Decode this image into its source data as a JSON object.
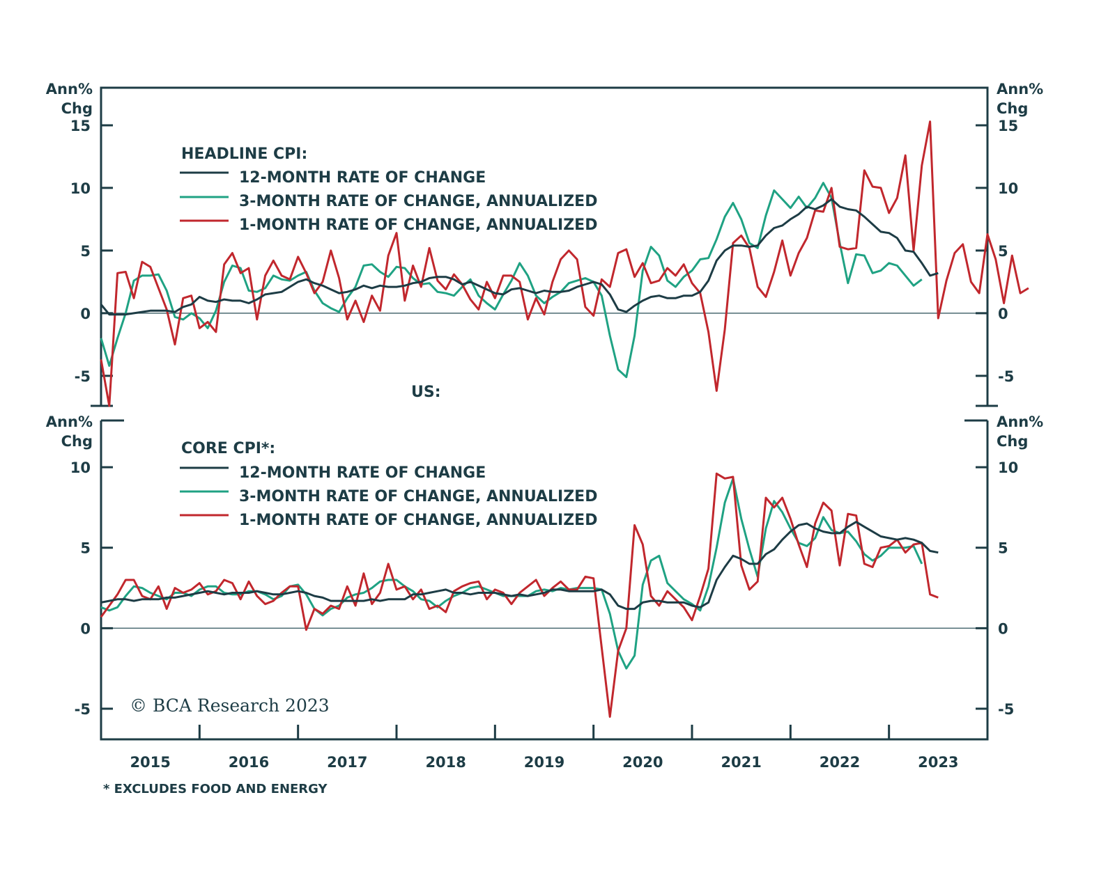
{
  "chart_data": [
    {
      "type": "line",
      "title": "HEADLINE CPI:",
      "ylabel": "Ann% Chg",
      "ylim": [
        -7.4,
        18
      ],
      "yticks": [
        -5,
        0,
        5,
        10,
        15
      ],
      "ytick_labels": [
        "-5",
        "0",
        "5",
        "10",
        "15"
      ],
      "x_start": "2015-01",
      "x_end": "2024-01",
      "legend_placement": "top-left",
      "series": [
        {
          "name": "12-MONTH RATE OF CHANGE",
          "color": "#1d3c45",
          "values": [
            0.7,
            -0.1,
            -0.1,
            -0.1,
            0.0,
            0.1,
            0.2,
            0.2,
            0.2,
            0.1,
            0.5,
            0.7,
            1.3,
            1.0,
            0.9,
            1.1,
            1.0,
            1.0,
            0.8,
            1.1,
            1.5,
            1.6,
            1.7,
            2.1,
            2.5,
            2.7,
            2.4,
            2.2,
            1.9,
            1.6,
            1.7,
            1.9,
            2.2,
            2.0,
            2.2,
            2.1,
            2.1,
            2.2,
            2.4,
            2.5,
            2.8,
            2.9,
            2.9,
            2.7,
            2.3,
            2.5,
            2.2,
            1.9,
            1.6,
            1.5,
            1.9,
            2.0,
            1.8,
            1.6,
            1.8,
            1.7,
            1.7,
            1.8,
            2.1,
            2.3,
            2.5,
            2.3,
            1.5,
            0.3,
            0.1,
            0.6,
            1.0,
            1.3,
            1.4,
            1.2,
            1.2,
            1.4,
            1.4,
            1.7,
            2.6,
            4.2,
            5.0,
            5.4,
            5.4,
            5.3,
            5.4,
            6.2,
            6.8,
            7.0,
            7.5,
            7.9,
            8.5,
            8.3,
            8.6,
            9.1,
            8.5,
            8.3,
            8.2,
            7.7,
            7.1,
            6.5,
            6.4,
            6.0,
            5.0,
            4.9,
            4.0,
            3.0,
            3.2
          ]
        },
        {
          "name": "3-MONTH RATE OF CHANGE, ANNUALIZED",
          "color": "#1fa283",
          "values": [
            -2.0,
            -4.2,
            -2.0,
            0.0,
            2.6,
            3.0,
            3.0,
            3.1,
            1.8,
            -0.3,
            -0.5,
            0.0,
            -0.4,
            -1.2,
            0.2,
            2.5,
            3.8,
            3.6,
            1.8,
            1.7,
            2.0,
            3.0,
            2.7,
            2.6,
            3.0,
            3.3,
            1.8,
            0.8,
            0.4,
            0.1,
            1.2,
            2.1,
            3.8,
            3.9,
            3.3,
            2.9,
            3.7,
            3.6,
            2.8,
            2.3,
            2.4,
            1.7,
            1.6,
            1.4,
            2.1,
            2.7,
            1.4,
            0.8,
            0.3,
            1.5,
            2.6,
            4.0,
            3.0,
            1.4,
            0.8,
            1.3,
            1.7,
            2.4,
            2.6,
            2.8,
            2.5,
            1.4,
            -1.8,
            -4.5,
            -5.1,
            -1.8,
            3.4,
            5.3,
            4.6,
            2.6,
            2.1,
            2.9,
            3.4,
            4.3,
            4.4,
            5.9,
            7.7,
            8.8,
            7.5,
            5.6,
            5.2,
            7.8,
            9.8,
            9.1,
            8.4,
            9.3,
            8.4,
            9.2,
            10.4,
            9.2,
            5.6,
            2.4,
            4.7,
            4.6,
            3.2,
            3.4,
            4.0,
            3.8,
            3.0,
            2.2,
            2.7
          ]
        },
        {
          "name": "1-MONTH RATE OF CHANGE, ANNUALIZED",
          "color": "#c1272d",
          "values": [
            -3.7,
            -7.4,
            3.2,
            3.3,
            1.2,
            4.1,
            3.7,
            2.0,
            0.3,
            -2.5,
            1.2,
            1.4,
            -1.2,
            -0.7,
            -1.5,
            3.9,
            4.8,
            3.2,
            3.6,
            -0.5,
            3.0,
            4.2,
            3.0,
            2.7,
            4.5,
            3.2,
            1.6,
            2.5,
            5.0,
            2.8,
            -0.5,
            1.0,
            -0.7,
            1.4,
            0.2,
            4.6,
            6.4,
            1.0,
            3.8,
            2.1,
            5.2,
            2.6,
            1.9,
            3.1,
            2.3,
            1.1,
            0.3,
            2.5,
            1.2,
            3.0,
            3.0,
            2.5,
            -0.5,
            1.2,
            -0.1,
            2.5,
            4.3,
            5.0,
            4.3,
            0.5,
            -0.2,
            2.7,
            2.1,
            4.8,
            5.1,
            2.9,
            4.0,
            2.4,
            2.6,
            3.6,
            3.0,
            3.9,
            2.4,
            1.6,
            -1.5,
            -6.2,
            -1.3,
            5.6,
            6.2,
            5.2,
            2.1,
            1.3,
            3.3,
            5.8,
            3.0,
            4.8,
            6.0,
            8.2,
            8.1,
            10.0,
            5.3,
            5.1,
            5.2,
            11.4,
            10.1,
            10.0,
            8.0,
            9.2,
            12.6,
            5.0,
            11.8,
            15.3,
            -0.4,
            2.6,
            4.8,
            5.5,
            2.5,
            1.6,
            6.3,
            4.3,
            0.8,
            4.6,
            1.6,
            2.0
          ]
        }
      ]
    },
    {
      "type": "line",
      "title": "CORE CPI*:",
      "ylabel": "Ann% Chg",
      "ylim": [
        -6.9,
        12.9
      ],
      "yticks": [
        -5,
        0,
        5,
        10
      ],
      "ytick_labels": [
        "-5",
        "0",
        "5",
        "10"
      ],
      "x_start": "2015-01",
      "x_end": "2024-01",
      "xticks": [
        "2016",
        "2017",
        "2018",
        "2019",
        "2020",
        "2021",
        "2022",
        "2023"
      ],
      "xtick_labels": [
        "2015",
        "2016",
        "2017",
        "2018",
        "2019",
        "2020",
        "2021",
        "2022",
        "2023"
      ],
      "legend_placement": "top-left",
      "series": [
        {
          "name": "12-MONTH RATE OF CHANGE",
          "color": "#1d3c45",
          "values": [
            1.6,
            1.7,
            1.8,
            1.8,
            1.7,
            1.8,
            1.8,
            1.8,
            1.9,
            1.9,
            2.0,
            2.1,
            2.2,
            2.3,
            2.2,
            2.1,
            2.2,
            2.2,
            2.2,
            2.3,
            2.2,
            2.1,
            2.1,
            2.2,
            2.3,
            2.2,
            2.0,
            1.9,
            1.7,
            1.7,
            1.7,
            1.7,
            1.7,
            1.8,
            1.7,
            1.8,
            1.8,
            1.8,
            2.1,
            2.1,
            2.2,
            2.3,
            2.4,
            2.2,
            2.2,
            2.1,
            2.2,
            2.2,
            2.2,
            2.1,
            2.0,
            2.1,
            2.0,
            2.1,
            2.2,
            2.4,
            2.4,
            2.3,
            2.3,
            2.3,
            2.3,
            2.4,
            2.1,
            1.4,
            1.2,
            1.2,
            1.6,
            1.7,
            1.7,
            1.6,
            1.6,
            1.6,
            1.4,
            1.3,
            1.6,
            3.0,
            3.8,
            4.5,
            4.3,
            4.0,
            4.0,
            4.6,
            4.9,
            5.5,
            6.0,
            6.4,
            6.5,
            6.2,
            6.0,
            5.9,
            5.9,
            6.3,
            6.6,
            6.3,
            6.0,
            5.7,
            5.6,
            5.5,
            5.6,
            5.5,
            5.3,
            4.8,
            4.7
          ]
        },
        {
          "name": "3-MONTH RATE OF CHANGE, ANNUALIZED",
          "color": "#1fa283",
          "values": [
            1.3,
            1.1,
            1.3,
            2.0,
            2.6,
            2.5,
            2.2,
            2.0,
            1.8,
            2.2,
            2.2,
            2.0,
            2.4,
            2.6,
            2.6,
            2.2,
            2.1,
            2.1,
            2.3,
            2.3,
            2.1,
            1.8,
            2.0,
            2.6,
            2.7,
            2.1,
            1.2,
            0.8,
            1.2,
            1.4,
            1.9,
            2.1,
            2.2,
            2.5,
            2.9,
            3.0,
            3.0,
            2.6,
            2.3,
            1.8,
            1.7,
            1.3,
            1.7,
            2.0,
            2.2,
            2.5,
            2.6,
            2.4,
            2.2,
            2.0,
            2.0,
            2.0,
            2.0,
            2.3,
            2.4,
            2.3,
            2.5,
            2.4,
            2.5,
            2.5,
            2.5,
            2.4,
            0.9,
            -1.4,
            -2.5,
            -1.7,
            2.7,
            4.2,
            4.5,
            2.8,
            2.3,
            1.8,
            1.5,
            1.1,
            2.6,
            5.0,
            7.8,
            9.3,
            6.8,
            4.9,
            3.2,
            6.2,
            7.9,
            7.2,
            6.2,
            5.3,
            5.1,
            5.6,
            6.9,
            6.1,
            5.9,
            6.0,
            5.4,
            4.6,
            4.2,
            4.5,
            5.0,
            5.0,
            5.0,
            5.1,
            4.0
          ]
        },
        {
          "name": "1-MONTH RATE OF CHANGE, ANNUALIZED",
          "color": "#c1272d",
          "values": [
            0.7,
            1.4,
            2.1,
            3.0,
            3.0,
            2.0,
            1.8,
            2.6,
            1.2,
            2.5,
            2.2,
            2.4,
            2.8,
            2.1,
            2.3,
            3.0,
            2.8,
            1.8,
            2.9,
            2.0,
            1.5,
            1.7,
            2.2,
            2.6,
            2.6,
            -0.1,
            1.2,
            0.9,
            1.4,
            1.2,
            2.6,
            1.4,
            3.4,
            1.5,
            2.2,
            4.0,
            2.4,
            2.6,
            1.8,
            2.4,
            1.2,
            1.4,
            1.0,
            2.3,
            2.6,
            2.8,
            2.9,
            1.8,
            2.4,
            2.2,
            1.5,
            2.2,
            2.6,
            3.0,
            2.0,
            2.5,
            2.9,
            2.4,
            2.4,
            3.2,
            3.1,
            -1.2,
            -5.5,
            -1.4,
            0.0,
            6.4,
            5.2,
            2.0,
            1.4,
            2.3,
            1.8,
            1.3,
            0.5,
            2.0,
            3.7,
            9.6,
            9.3,
            9.4,
            3.9,
            2.4,
            2.9,
            8.1,
            7.5,
            8.1,
            6.8,
            5.2,
            3.8,
            6.5,
            7.8,
            7.3,
            3.9,
            7.1,
            7.0,
            4.0,
            3.8,
            5.0,
            5.1,
            5.5,
            4.7,
            5.2,
            5.3,
            2.1,
            1.9
          ]
        }
      ]
    }
  ],
  "labels": {
    "left_ylabel_line1": "Ann%",
    "left_ylabel_line2": "Chg",
    "right_ylabel_line1": "Ann%",
    "right_ylabel_line2": "Chg",
    "region_label": "US:",
    "top_legend_title": "HEADLINE CPI:",
    "bottom_legend_title": "CORE CPI*:",
    "legend_12m": "12-MONTH RATE OF CHANGE",
    "legend_3m": "3-MONTH RATE OF CHANGE, ANNUALIZED",
    "legend_1m": "1-MONTH RATE OF CHANGE, ANNUALIZED",
    "copyright": "© BCA Research 2023",
    "footnote": "* EXCLUDES FOOD AND ENERGY"
  },
  "colors": {
    "axis": "#1d3c45",
    "series_12m": "#1d3c45",
    "series_3m": "#1fa283",
    "series_1m": "#c1272d",
    "zero_line": "#4a6a70"
  }
}
